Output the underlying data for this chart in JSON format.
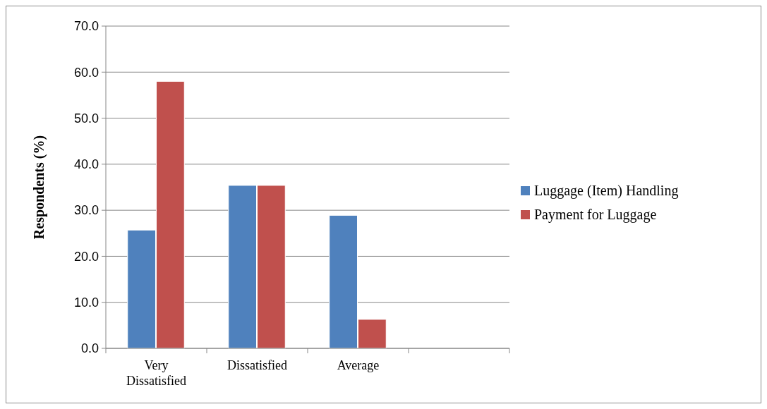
{
  "chart_data": {
    "type": "bar",
    "ylabel": "Respondents (%)",
    "categories": [
      "Very Dissatisfied",
      "Dissatisfied",
      "Average",
      null
    ],
    "series": [
      {
        "name": "Luggage (Item) Handling",
        "color": "#4f81bd",
        "values": [
          25.7,
          35.4,
          28.9,
          null
        ]
      },
      {
        "name": "Payment for Luggage",
        "color": "#c0504d",
        "values": [
          58.0,
          35.4,
          6.3,
          null
        ]
      }
    ],
    "ylim": [
      0,
      70
    ],
    "yticks": [
      {
        "value": 0,
        "label": "0.0"
      },
      {
        "value": 10,
        "label": "10.0"
      },
      {
        "value": 20,
        "label": "20.0"
      },
      {
        "value": 30,
        "label": "30.0"
      },
      {
        "value": 40,
        "label": "40.0"
      },
      {
        "value": 50,
        "label": "50.0"
      },
      {
        "value": 60,
        "label": "60.0"
      },
      {
        "value": 70,
        "label": "70.0"
      }
    ],
    "grid": "y",
    "legend": "right"
  }
}
